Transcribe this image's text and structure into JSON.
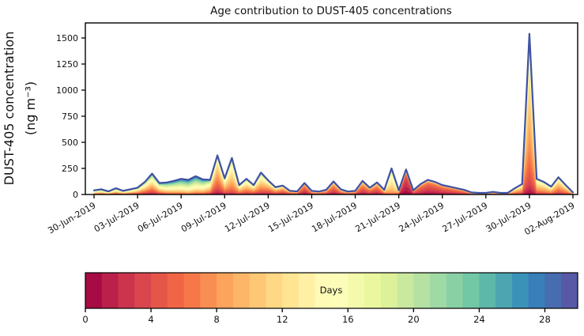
{
  "chart": {
    "title": "Age contribution to DUST-405 concentrations",
    "ylabel_line1": "DUST-405 concentration",
    "ylabel_line2": "(ng m⁻³)",
    "colorbar_label": "Days"
  },
  "chart_data": {
    "type": "area",
    "subtype": "stacked-by-age-bin, youngest age at bottom, oldest at top",
    "title": "Age contribution to DUST-405 concentrations",
    "ylabel": "DUST-405 concentration (ng m⁻³)",
    "y_ticks": [
      0,
      250,
      500,
      750,
      1000,
      1250,
      1500
    ],
    "ylim": [
      0,
      1640
    ],
    "x_tick_labels": [
      "30-Jun-2019",
      "03-Jul-2019",
      "06-Jul-2019",
      "09-Jul-2019",
      "12-Jul-2019",
      "15-Jul-2019",
      "18-Jul-2019",
      "21-Jul-2019",
      "24-Jul-2019",
      "27-Jul-2019",
      "30-Jul-2019",
      "02-Aug-2019"
    ],
    "x_tick_interval_days": 3,
    "x_start": "30-Jun-2019",
    "x_end": "02-Aug-2019",
    "x_step_hours": 12,
    "n_points": 67,
    "totals_ng_m3": [
      40,
      50,
      30,
      60,
      35,
      50,
      65,
      120,
      200,
      110,
      115,
      130,
      150,
      140,
      175,
      145,
      140,
      375,
      155,
      350,
      90,
      150,
      90,
      210,
      135,
      70,
      85,
      35,
      30,
      110,
      35,
      28,
      45,
      125,
      50,
      28,
      35,
      130,
      65,
      115,
      45,
      250,
      40,
      240,
      40,
      100,
      140,
      120,
      90,
      75,
      60,
      45,
      20,
      15,
      15,
      25,
      15,
      15,
      60,
      100,
      1540,
      150,
      120,
      75,
      165,
      90,
      20
    ],
    "age_mean_days": [
      12,
      12,
      12,
      11,
      11,
      11,
      10,
      10,
      10,
      12,
      15,
      16,
      17,
      18,
      17,
      16,
      12,
      8,
      10,
      11,
      10,
      10,
      9,
      10,
      8,
      8,
      7,
      6,
      6,
      4,
      6,
      6,
      6,
      5,
      6,
      6,
      6,
      5,
      5,
      5,
      8,
      13,
      8,
      2,
      4,
      4,
      3.5,
      3.5,
      4,
      4,
      4.5,
      5,
      8,
      8,
      8,
      7,
      8,
      8,
      9,
      9,
      9.5,
      10,
      10,
      10,
      9,
      9,
      9
    ],
    "age_sigma_days": [
      9,
      9,
      9,
      8,
      8,
      8,
      8,
      8,
      8,
      8,
      8,
      8,
      8,
      8,
      8,
      8,
      7,
      5,
      6,
      5,
      6,
      6,
      6,
      6,
      6,
      6,
      5,
      5,
      5,
      3.5,
      5,
      5,
      4,
      4,
      5,
      5,
      4,
      4,
      4,
      4,
      5,
      3.5,
      5,
      2,
      4,
      3,
      3,
      3,
      3,
      3,
      3,
      3.5,
      7,
      7,
      7,
      6,
      6,
      5,
      5,
      5,
      4.5,
      5,
      5,
      5,
      5,
      5,
      5
    ],
    "n_age_bins": 30,
    "age_range_days": [
      0,
      30
    ],
    "colormap_name": "Spectral",
    "colormap_anchors": [
      "#9e0142",
      "#d53e4f",
      "#f46d43",
      "#fdae61",
      "#fee08b",
      "#ffffbf",
      "#e6f598",
      "#abdda4",
      "#66c2a5",
      "#3288bd",
      "#5e4fa2"
    ],
    "outline_color": "#3f51a3",
    "axis_color": "#000000",
    "background_color": "#ffffff",
    "colorbar": {
      "label": "Days",
      "ticks": [
        0,
        4,
        8,
        12,
        16,
        20,
        24,
        28
      ],
      "min": 0,
      "max": 30,
      "n_segments": 30,
      "orientation": "horizontal"
    }
  }
}
